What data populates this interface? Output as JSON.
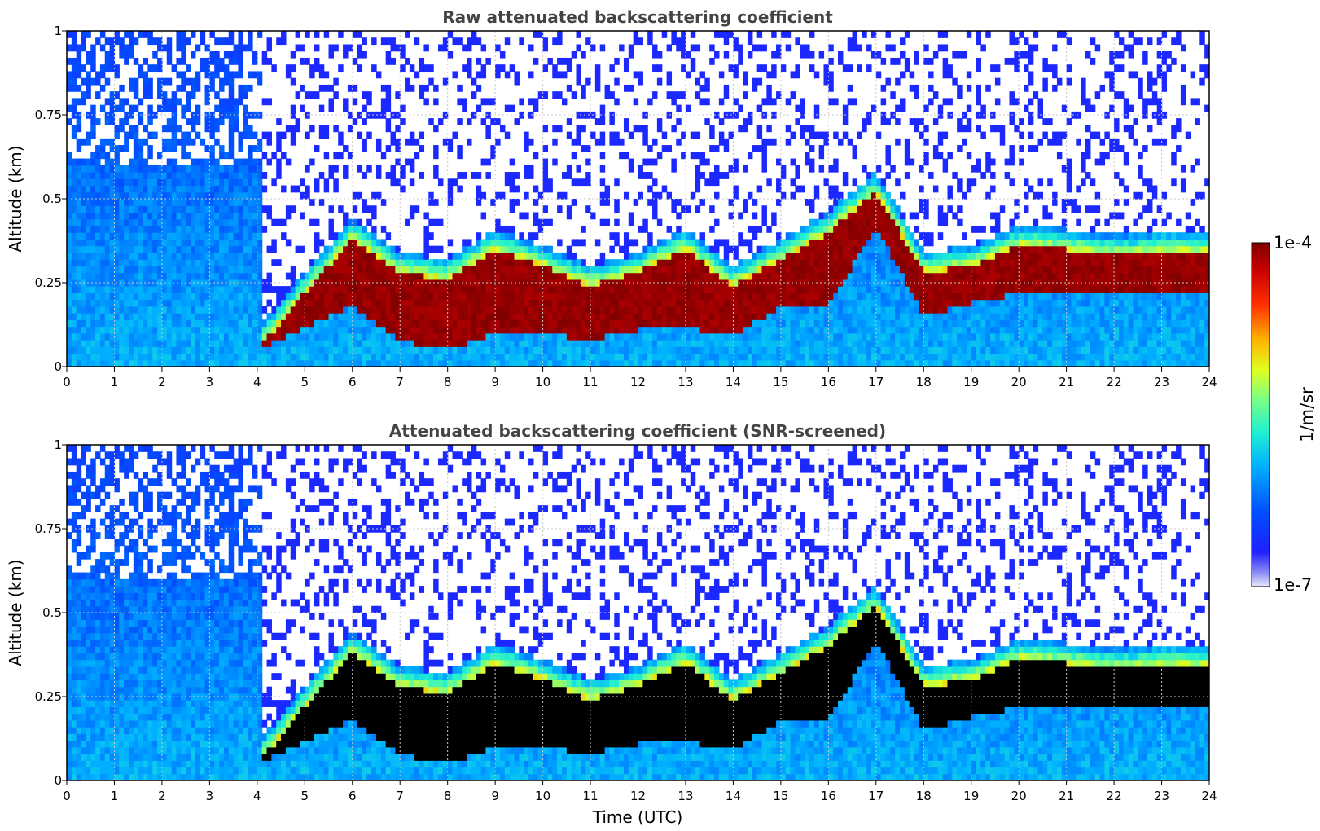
{
  "chart_data": [
    {
      "type": "heatmap",
      "title": "Raw attenuated backscattering coefficient",
      "xlabel": "",
      "ylabel": "Altitude (km)",
      "xlim": [
        0,
        24
      ],
      "ylim": [
        0,
        1
      ],
      "x_ticks": [
        "0",
        "1",
        "2",
        "3",
        "4",
        "5",
        "6",
        "7",
        "8",
        "9",
        "10",
        "11",
        "12",
        "13",
        "14",
        "15",
        "16",
        "17",
        "18",
        "19",
        "20",
        "21",
        "22",
        "23",
        "24"
      ],
      "y_ticks": [
        "0",
        "0.25",
        "0.5",
        "0.75",
        "1"
      ],
      "grid": true,
      "screened": false,
      "cloud_base_km": [
        [
          0,
          0.05
        ],
        [
          4,
          0.05
        ],
        [
          5,
          0.12
        ],
        [
          6,
          0.18
        ],
        [
          7,
          0.08
        ],
        [
          8,
          0.05
        ],
        [
          9,
          0.1
        ],
        [
          10,
          0.1
        ],
        [
          11,
          0.08
        ],
        [
          12,
          0.11
        ],
        [
          13,
          0.12
        ],
        [
          14,
          0.09
        ],
        [
          15,
          0.18
        ],
        [
          16,
          0.18
        ],
        [
          17,
          0.42
        ],
        [
          18,
          0.15
        ],
        [
          19,
          0.19
        ],
        [
          20,
          0.22
        ],
        [
          21,
          0.22
        ],
        [
          22,
          0.23
        ],
        [
          23,
          0.22
        ],
        [
          24,
          0.22
        ]
      ],
      "cloud_top_km": [
        [
          0,
          0.05
        ],
        [
          4,
          0.05
        ],
        [
          5,
          0.22
        ],
        [
          6,
          0.38
        ],
        [
          7,
          0.28
        ],
        [
          8,
          0.26
        ],
        [
          9,
          0.35
        ],
        [
          10,
          0.3
        ],
        [
          11,
          0.24
        ],
        [
          12,
          0.28
        ],
        [
          13,
          0.35
        ],
        [
          14,
          0.24
        ],
        [
          15,
          0.32
        ],
        [
          16,
          0.4
        ],
        [
          17,
          0.52
        ],
        [
          18,
          0.28
        ],
        [
          19,
          0.3
        ],
        [
          20,
          0.36
        ],
        [
          21,
          0.35
        ],
        [
          22,
          0.33
        ],
        [
          23,
          0.34
        ],
        [
          24,
          0.34
        ]
      ]
    },
    {
      "type": "heatmap",
      "title": "Attenuated backscattering coefficient (SNR-screened)",
      "xlabel": "Time (UTC)",
      "ylabel": "Altitude (km)",
      "xlim": [
        0,
        24
      ],
      "ylim": [
        0,
        1
      ],
      "x_ticks": [
        "0",
        "1",
        "2",
        "3",
        "4",
        "5",
        "6",
        "7",
        "8",
        "9",
        "10",
        "11",
        "12",
        "13",
        "14",
        "15",
        "16",
        "17",
        "18",
        "19",
        "20",
        "21",
        "22",
        "23",
        "24"
      ],
      "y_ticks": [
        "0",
        "0.25",
        "0.5",
        "0.75",
        "1"
      ],
      "grid": true,
      "screened": true
    }
  ],
  "colorbar": {
    "label": "1/m/sr",
    "max_label": "1e-4",
    "min_label": "1e-7",
    "colormap": "jet",
    "saturated_color": "#000000"
  }
}
